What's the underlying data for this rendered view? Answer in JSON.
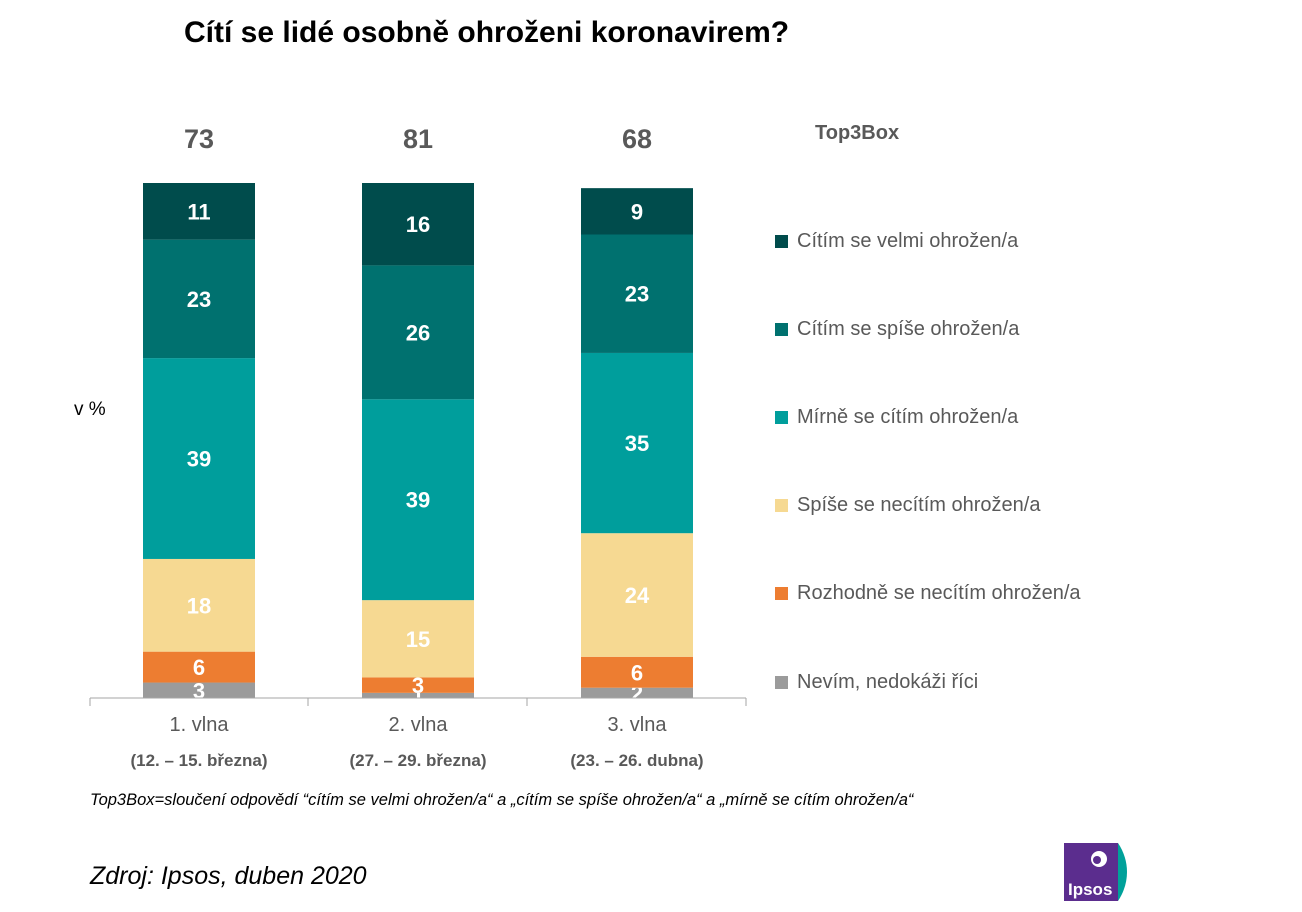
{
  "title": "Cítí se lidé osobně ohroženi koronavirem?",
  "note": "Top3Box=sloučení odpovědí “cítím se velmi ohrožen/a“ a „cítím se spíše ohrožen/a“ a „mírně se cítím ohrožen/a“",
  "source": "Zdroj: Ipsos, duben 2020",
  "logo_text": "Ipsos",
  "chart_data": {
    "type": "bar",
    "stacked": true,
    "ylabel": "v %",
    "legend_title": "Top3Box",
    "legend_position": "right",
    "categories": [
      "1. vlna",
      "2. vlna",
      "3. vlna"
    ],
    "category_dates": [
      "(12. – 15. března)",
      "(27. – 29. března)",
      "(23. – 26. dubna)"
    ],
    "top3box": [
      73,
      81,
      68
    ],
    "series": [
      {
        "name": "Nevím, nedokáži říci",
        "color": "#9b9b9b",
        "values": [
          3,
          1,
          2
        ]
      },
      {
        "name": "Rozhodně se necítím ohrožen/a",
        "color": "#ed7d31",
        "values": [
          6,
          3,
          6
        ]
      },
      {
        "name": "Spíše se necítím ohrožen/a",
        "color": "#f6d992",
        "values": [
          18,
          15,
          24
        ]
      },
      {
        "name": "Mírně se cítím ohrožen/a",
        "color": "#009e9c",
        "values": [
          39,
          39,
          35
        ]
      },
      {
        "name": "Cítím se spíše ohrožen/a",
        "color": "#00716f",
        "values": [
          23,
          26,
          23
        ]
      },
      {
        "name": "Cítím se velmi ohrožen/a",
        "color": "#004c4c",
        "values": [
          11,
          16,
          9
        ]
      }
    ],
    "ylim": [
      0,
      100
    ]
  }
}
